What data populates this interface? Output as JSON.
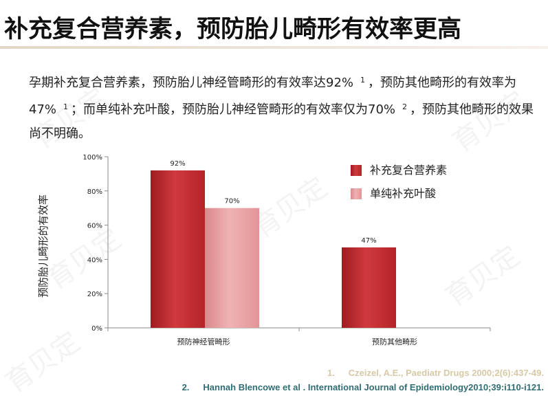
{
  "slide": {
    "title": "补充复合营养素，预防胎儿畸形有效率更高",
    "paragraph": {
      "p1": "孕期补充复合营养素，预防胎儿神经管畸形的有效率达92%",
      "sup1": "1",
      "p2": "，预防其他畸形的有效率为47%",
      "sup2": "1",
      "p3": "；而单纯补充叶酸，预防胎儿神经管畸形的有效率仅为70%",
      "sup3": "2",
      "p4": "，预防其他畸形的效果尚不明确。"
    },
    "references": [
      {
        "num": "1.",
        "text": "Czeizel, A.E., Paediatr Drugs 2000;2(6):437-49."
      },
      {
        "num": "2.",
        "text": "Hannah Blencowe et al . International Journal of Epidemiology2010;39:i110-i121."
      }
    ],
    "watermark": "育贝定"
  },
  "chart_data": {
    "type": "bar",
    "categories": [
      "预防神经管畸形",
      "预防其他畸形"
    ],
    "series": [
      {
        "name": "补充复合营养素",
        "values": [
          92,
          47
        ],
        "color": "#c0282c"
      },
      {
        "name": "单纯补充叶酸",
        "values": [
          70,
          null
        ],
        "color": "#e99a9c"
      }
    ],
    "data_labels": [
      [
        "92%",
        "47%"
      ],
      [
        "70%",
        ""
      ]
    ],
    "ylabel": "预防胎儿畸形的有效率",
    "xlabel": "",
    "ylim": [
      0,
      100
    ],
    "yticks": [
      "0%",
      "20%",
      "40%",
      "60%",
      "80%",
      "100%"
    ],
    "grid": false,
    "legend_position": "top-right"
  }
}
